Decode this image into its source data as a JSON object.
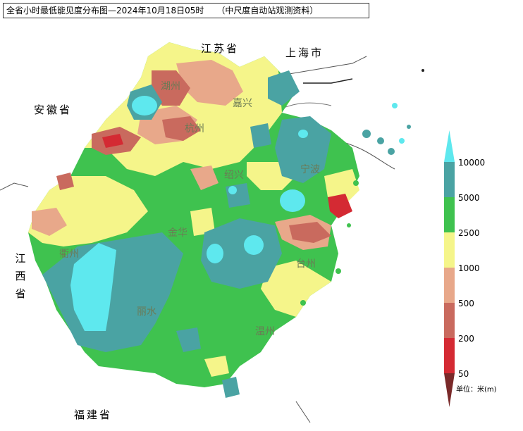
{
  "title": "全省小时最低能见度分布图—2024年10月18日05时",
  "source_note": "（中尺度自动站观测资料）",
  "neighbors": {
    "jiangsu": "江苏省",
    "shanghai": "上海市",
    "anhui": "安徽省",
    "jiangxi": [
      "江",
      "西",
      "省"
    ],
    "fujian": "福建省"
  },
  "cities": {
    "huzhou": "湖州",
    "jiaxing": "嘉兴",
    "hangzhou": "杭州",
    "shaoxing": "绍兴",
    "ningbo": "宁波",
    "jinhua": "金华",
    "quzhou": "衢州",
    "taizhou": "台州",
    "lishui": "丽水",
    "wenzhou": "温州"
  },
  "legend": {
    "levels": [
      "10000",
      "5000",
      "2500",
      "1000",
      "500",
      "200",
      "50"
    ],
    "colors": {
      "gt10000": "#5ee8ee",
      "5000_10000": "#4aa3a3",
      "2500_5000": "#3fc24f",
      "1000_2500": "#f5f58a",
      "500_1000": "#e8a88a",
      "200_500": "#c96a5e",
      "50_200": "#d42a33",
      "lt50": "#7a2a2a"
    },
    "unit": "单位：米(m)"
  }
}
